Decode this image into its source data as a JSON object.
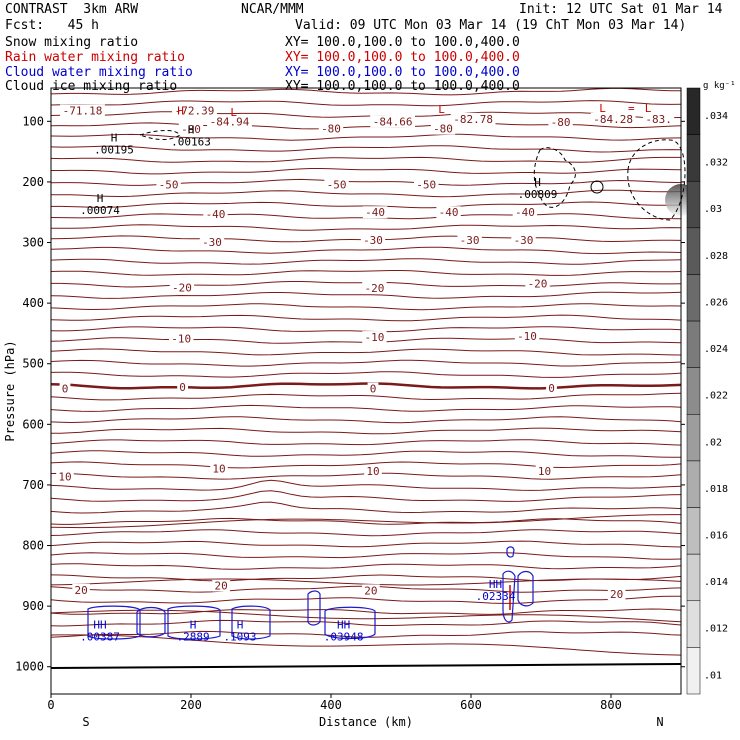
{
  "header": {
    "model": "CONTRAST  3km ARW",
    "org": "NCAR/MMM",
    "init": "Init: 12 UTC Sat 01 Mar 14",
    "fcst": "Fcst:   45 h",
    "valid": "Valid: 09 UTC Mon 03 Mar 14 (19 ChT Mon 03 Mar 14)",
    "fields": [
      {
        "label": "Snow mixing ratio",
        "xy": "XY= 100.0,100.0 to 100.0,400.0",
        "color": "#000000"
      },
      {
        "label": "Rain water mixing ratio",
        "xy": "XY= 100.0,100.0 to 100.0,400.0",
        "color": "#cc0000"
      },
      {
        "label": "Cloud water mixing ratio",
        "xy": "XY= 100.0,100.0 to 100.0,400.0",
        "color": "#0000cc"
      },
      {
        "label": "Cloud ice mixing ratio",
        "xy": "XY= 100.0,100.0 to 100.0,400.0",
        "color": "#000000"
      }
    ]
  },
  "chart_data": {
    "type": "contour",
    "ylabel": "Pressure (hPa)",
    "xlabel": "Distance (km)",
    "x_ticks": [
      0,
      200,
      400,
      600,
      800
    ],
    "y_ticks": [
      100,
      200,
      300,
      400,
      500,
      600,
      700,
      800,
      900,
      1000
    ],
    "xlim": [
      0,
      900
    ],
    "ylim": [
      1045,
      45
    ],
    "x_end_labels": {
      "left": "S",
      "right": "N"
    },
    "colorbar": {
      "unit": "g kg⁻¹",
      "ticks": [
        "0.034",
        "0.032",
        ".03",
        ".028",
        ".026",
        ".024",
        ".022",
        ".02",
        ".018",
        ".016",
        ".014",
        ".012",
        ".01"
      ],
      "ticks_display": [
        ".034",
        ".032",
        ".03",
        ".028",
        ".026",
        ".024",
        ".022",
        ".02",
        ".018",
        ".016",
        ".014",
        ".012",
        ".01"
      ]
    },
    "temperature_labels": [
      {
        "text": "-71.18",
        "x": 45,
        "p": 82
      },
      {
        "text": "-72.39",
        "x": 205,
        "p": 82
      },
      {
        "text": "-80",
        "x": 200,
        "p": 113
      },
      {
        "text": "-84.94",
        "x": 255,
        "p": 100
      },
      {
        "text": "-80",
        "x": 400,
        "p": 112
      },
      {
        "text": "-84.66",
        "x": 488,
        "p": 100
      },
      {
        "text": "-80",
        "x": 560,
        "p": 112
      },
      {
        "text": "-82.78",
        "x": 603,
        "p": 96
      },
      {
        "text": "-80",
        "x": 728,
        "p": 101
      },
      {
        "text": "-84.28",
        "x": 803,
        "p": 96
      },
      {
        "text": "-83.",
        "x": 868,
        "p": 96
      },
      {
        "text": "-50",
        "x": 168,
        "p": 204
      },
      {
        "text": "-50",
        "x": 408,
        "p": 204
      },
      {
        "text": "-50",
        "x": 536,
        "p": 204
      },
      {
        "text": "-40",
        "x": 235,
        "p": 253
      },
      {
        "text": "-40",
        "x": 463,
        "p": 250
      },
      {
        "text": "-40",
        "x": 568,
        "p": 250
      },
      {
        "text": "-40",
        "x": 677,
        "p": 250
      },
      {
        "text": "-30",
        "x": 230,
        "p": 299
      },
      {
        "text": "-30",
        "x": 460,
        "p": 296
      },
      {
        "text": "-30",
        "x": 598,
        "p": 296
      },
      {
        "text": "-30",
        "x": 675,
        "p": 296
      },
      {
        "text": "-20",
        "x": 187,
        "p": 374
      },
      {
        "text": "-20",
        "x": 462,
        "p": 375
      },
      {
        "text": "-20",
        "x": 695,
        "p": 368
      },
      {
        "text": "-10",
        "x": 186,
        "p": 458
      },
      {
        "text": "-10",
        "x": 462,
        "p": 456
      },
      {
        "text": "-10",
        "x": 680,
        "p": 454
      },
      {
        "text": "0",
        "x": 20,
        "p": 541
      },
      {
        "text": "0",
        "x": 188,
        "p": 538
      },
      {
        "text": "0",
        "x": 460,
        "p": 541
      },
      {
        "text": "0",
        "x": 715,
        "p": 540
      },
      {
        "text": "10",
        "x": 20,
        "p": 686
      },
      {
        "text": "10",
        "x": 240,
        "p": 673
      },
      {
        "text": "10",
        "x": 460,
        "p": 677
      },
      {
        "text": "10",
        "x": 705,
        "p": 677
      },
      {
        "text": "20",
        "x": 43,
        "p": 873
      },
      {
        "text": "20",
        "x": 243,
        "p": 866
      },
      {
        "text": "20",
        "x": 457,
        "p": 874
      },
      {
        "text": "20",
        "x": 808,
        "p": 880
      }
    ],
    "markers": [
      {
        "text": "H",
        "x": 185,
        "p": 82,
        "color": "#cc0000"
      },
      {
        "text": "L",
        "x": 261,
        "p": 85,
        "color": "#cc0000"
      },
      {
        "text": "L",
        "x": 558,
        "p": 80,
        "color": "#cc0000"
      },
      {
        "text": "L",
        "x": 788,
        "p": 78,
        "color": "#cc0000"
      },
      {
        "text": "L",
        "x": 853,
        "p": 78,
        "color": "#cc0000"
      },
      {
        "text": "=",
        "x": 829,
        "p": 78,
        "color": "#cc0000"
      }
    ],
    "max_labels": [
      {
        "mark": "H",
        "value": ".00195",
        "x": 90,
        "p": 133,
        "color": "#000000"
      },
      {
        "mark": "H",
        "value": ".00163",
        "x": 200,
        "p": 120,
        "color": "#000000"
      },
      {
        "mark": "H",
        "value": ".00074",
        "x": 70,
        "p": 233,
        "color": "#000000"
      },
      {
        "mark": "H",
        "value": ".00809",
        "x": 695,
        "p": 207,
        "color": "#000000"
      },
      {
        "mark": "HH",
        "value": ".00387",
        "x": 70,
        "p": 937,
        "color": "#0000cc"
      },
      {
        "mark": "H",
        "value": ".2889",
        "x": 203,
        "p": 937,
        "color": "#0000cc"
      },
      {
        "mark": "H",
        "value": ".1093",
        "x": 270,
        "p": 937,
        "color": "#0000cc"
      },
      {
        "mark": "HH",
        "value": ".03948",
        "x": 418,
        "p": 937,
        "color": "#0000cc"
      },
      {
        "mark": "HH",
        "value": ".02334",
        "x": 635,
        "p": 870,
        "color": "#0000cc"
      }
    ]
  }
}
